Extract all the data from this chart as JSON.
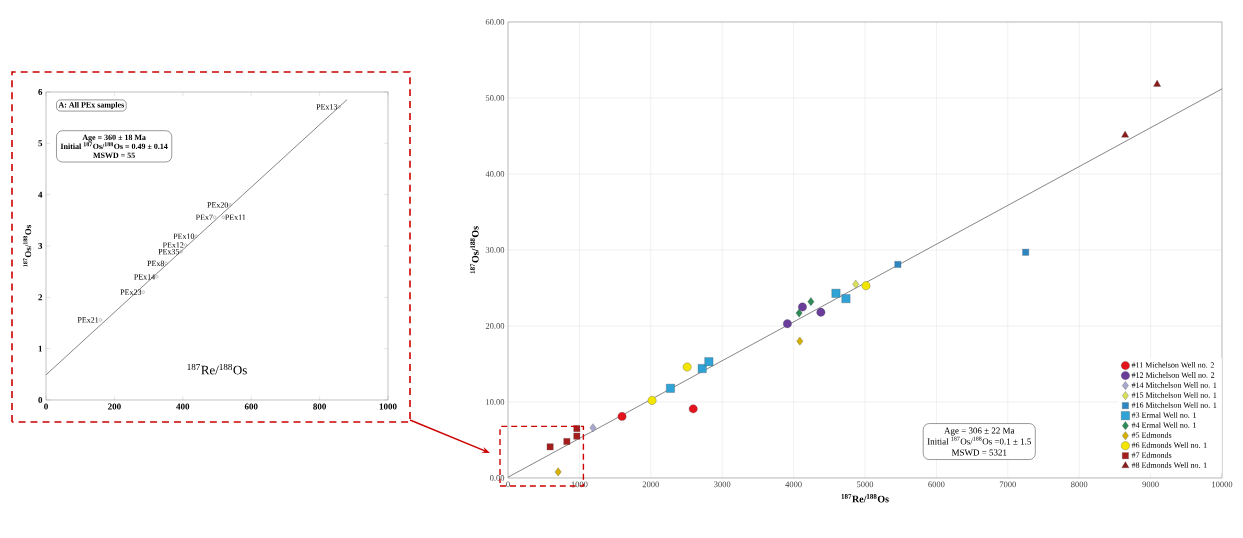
{
  "chart_data": [
    {
      "type": "scatter",
      "title": "A: All PEx samples",
      "xlabel": "$^{187}$Re/$^{188}$Os",
      "ylabel": "$^{187}$Os/$^{188}$Os",
      "xlim": [
        0,
        1000
      ],
      "ylim": [
        0,
        6
      ],
      "xticks": [
        0,
        200,
        400,
        600,
        800,
        1000
      ],
      "yticks": [
        0,
        1,
        2,
        3,
        4,
        5,
        6
      ],
      "grid": false,
      "legend": false,
      "annotations": [
        "Age = 360 ± 18 Ma",
        "Initial $^{187}$Os/$^{188}$Os = 0.49 ± 0.14",
        "MSWD = 55",
        {
          "text": "PEx21",
          "x": 159,
          "y": 1.56
        },
        {
          "text": "PEx23",
          "x": 284,
          "y": 2.1
        },
        {
          "text": "PEx14",
          "x": 324,
          "y": 2.4
        },
        {
          "text": "PEx8",
          "x": 351,
          "y": 2.66
        },
        {
          "text": "PEx35",
          "x": 395,
          "y": 2.89
        },
        {
          "text": "PEx12",
          "x": 408,
          "y": 3.02
        },
        {
          "text": "PEx10",
          "x": 439,
          "y": 3.19
        },
        {
          "text": "PEx7",
          "x": 493,
          "y": 3.56
        },
        {
          "text": "PEx11",
          "x": 518,
          "y": 3.56
        },
        {
          "text": "PEx20",
          "x": 538,
          "y": 3.8
        },
        {
          "text": "PEx13",
          "x": 857,
          "y": 5.71
        }
      ],
      "series": [
        {
          "color": "#707070",
          "marker": "circle",
          "x": [
            159,
            284,
            324,
            351,
            395,
            408,
            439,
            493,
            518,
            538,
            857
          ],
          "values": [
            1.56,
            2.1,
            2.4,
            2.66,
            2.89,
            3.02,
            3.19,
            3.56,
            3.56,
            3.8,
            5.71
          ]
        },
        {
          "type": "line",
          "color": "#505050",
          "marker": "none",
          "x": [
            0,
            880
          ],
          "values": [
            0.49,
            5.85
          ]
        }
      ]
    },
    {
      "type": "scatter",
      "xlabel": "$^{187}$Re/$^{188}$Os",
      "ylabel": "$^{187}$Os/$^{188}$Os",
      "xlim": [
        0,
        10000
      ],
      "ylim": [
        0,
        60
      ],
      "xticks": [
        0,
        1000,
        2000,
        3000,
        4000,
        5000,
        6000,
        7000,
        8000,
        9000,
        10000
      ],
      "yticks": [
        {
          "value": 0,
          "label": "0.00"
        },
        {
          "value": 10,
          "label": "10.00"
        },
        {
          "value": 20,
          "label": "20.00"
        },
        {
          "value": 30,
          "label": "30.00"
        },
        {
          "value": 40,
          "label": "40.00"
        },
        {
          "value": 50,
          "label": "50.00"
        },
        {
          "value": 60,
          "label": "60.00"
        }
      ],
      "grid": true,
      "legend": "bottom right",
      "annotations": [
        "Age = 306 ± 22 Ma",
        "Initial $^{187}$Os/$^{188}$Os =0.1 ± 1.5",
        "MSWD = 5321"
      ],
      "series": [
        {
          "name": "#11 Michelson Well no. 2",
          "color": "#e3141c",
          "marker": "circle",
          "x": [
            1597,
            2594
          ],
          "values": [
            8.1,
            9.1
          ]
        },
        {
          "name": "#12 Michelson Well no. 2",
          "color": "#6a3d9a",
          "marker": "circle",
          "x": [
            3913,
            4124,
            4382
          ],
          "values": [
            20.3,
            22.5,
            21.8
          ]
        },
        {
          "name": "#14 Mitchelson Well no. 1",
          "color": "#a8a8cc",
          "marker": "diamond",
          "x": [
            1190
          ],
          "values": [
            6.6
          ]
        },
        {
          "name": "#15 Mitchelson Well no. 1",
          "color": "#d8e05a",
          "marker": "diamond",
          "x": [
            4870
          ],
          "values": [
            25.5
          ]
        },
        {
          "name": "#16 Mitchelson Well no. 1",
          "color": "#2e86c1",
          "marker": "square",
          "x": [
            5460,
            7250
          ],
          "values": [
            28.1,
            29.7
          ]
        },
        {
          "name": "#3 Ermal Well no. 1",
          "color": "#2fa3d6",
          "marker": "square",
          "x": [
            2275,
            2720,
            2813,
            4593,
            4733
          ],
          "values": [
            11.8,
            14.4,
            15.3,
            24.3,
            23.6
          ]
        },
        {
          "name": "#4 Ermal Well no. 1",
          "color": "#2e8b57",
          "marker": "diamond",
          "x": [
            4077,
            4242
          ],
          "values": [
            21.7,
            23.2
          ]
        },
        {
          "name": "#5 Edmonds",
          "color": "#d4b000",
          "marker": "diamond",
          "x": [
            702,
            4087
          ],
          "values": [
            0.8,
            18.0
          ]
        },
        {
          "name": "#6 Edmonds Well no. 1",
          "color": "#f2e600",
          "marker": "circle",
          "x": [
            2018,
            2509,
            5014
          ],
          "values": [
            10.2,
            14.6,
            25.3
          ]
        },
        {
          "name": "#7 Edmonds",
          "color": "#a51c1c",
          "marker": "square",
          "x": [
            590,
            824,
            964,
            964
          ],
          "values": [
            4.1,
            4.8,
            5.5,
            6.5
          ]
        },
        {
          "name": "#8 Edmonds Well no. 1",
          "color": "#8b1a1a",
          "marker": "triangle",
          "x": [
            8643,
            9091
          ],
          "values": [
            45.1,
            51.8
          ]
        },
        {
          "type": "line",
          "color": "#505050",
          "marker": "none",
          "x": [
            0,
            10000
          ],
          "values": [
            0.1,
            51.2
          ]
        }
      ]
    }
  ]
}
